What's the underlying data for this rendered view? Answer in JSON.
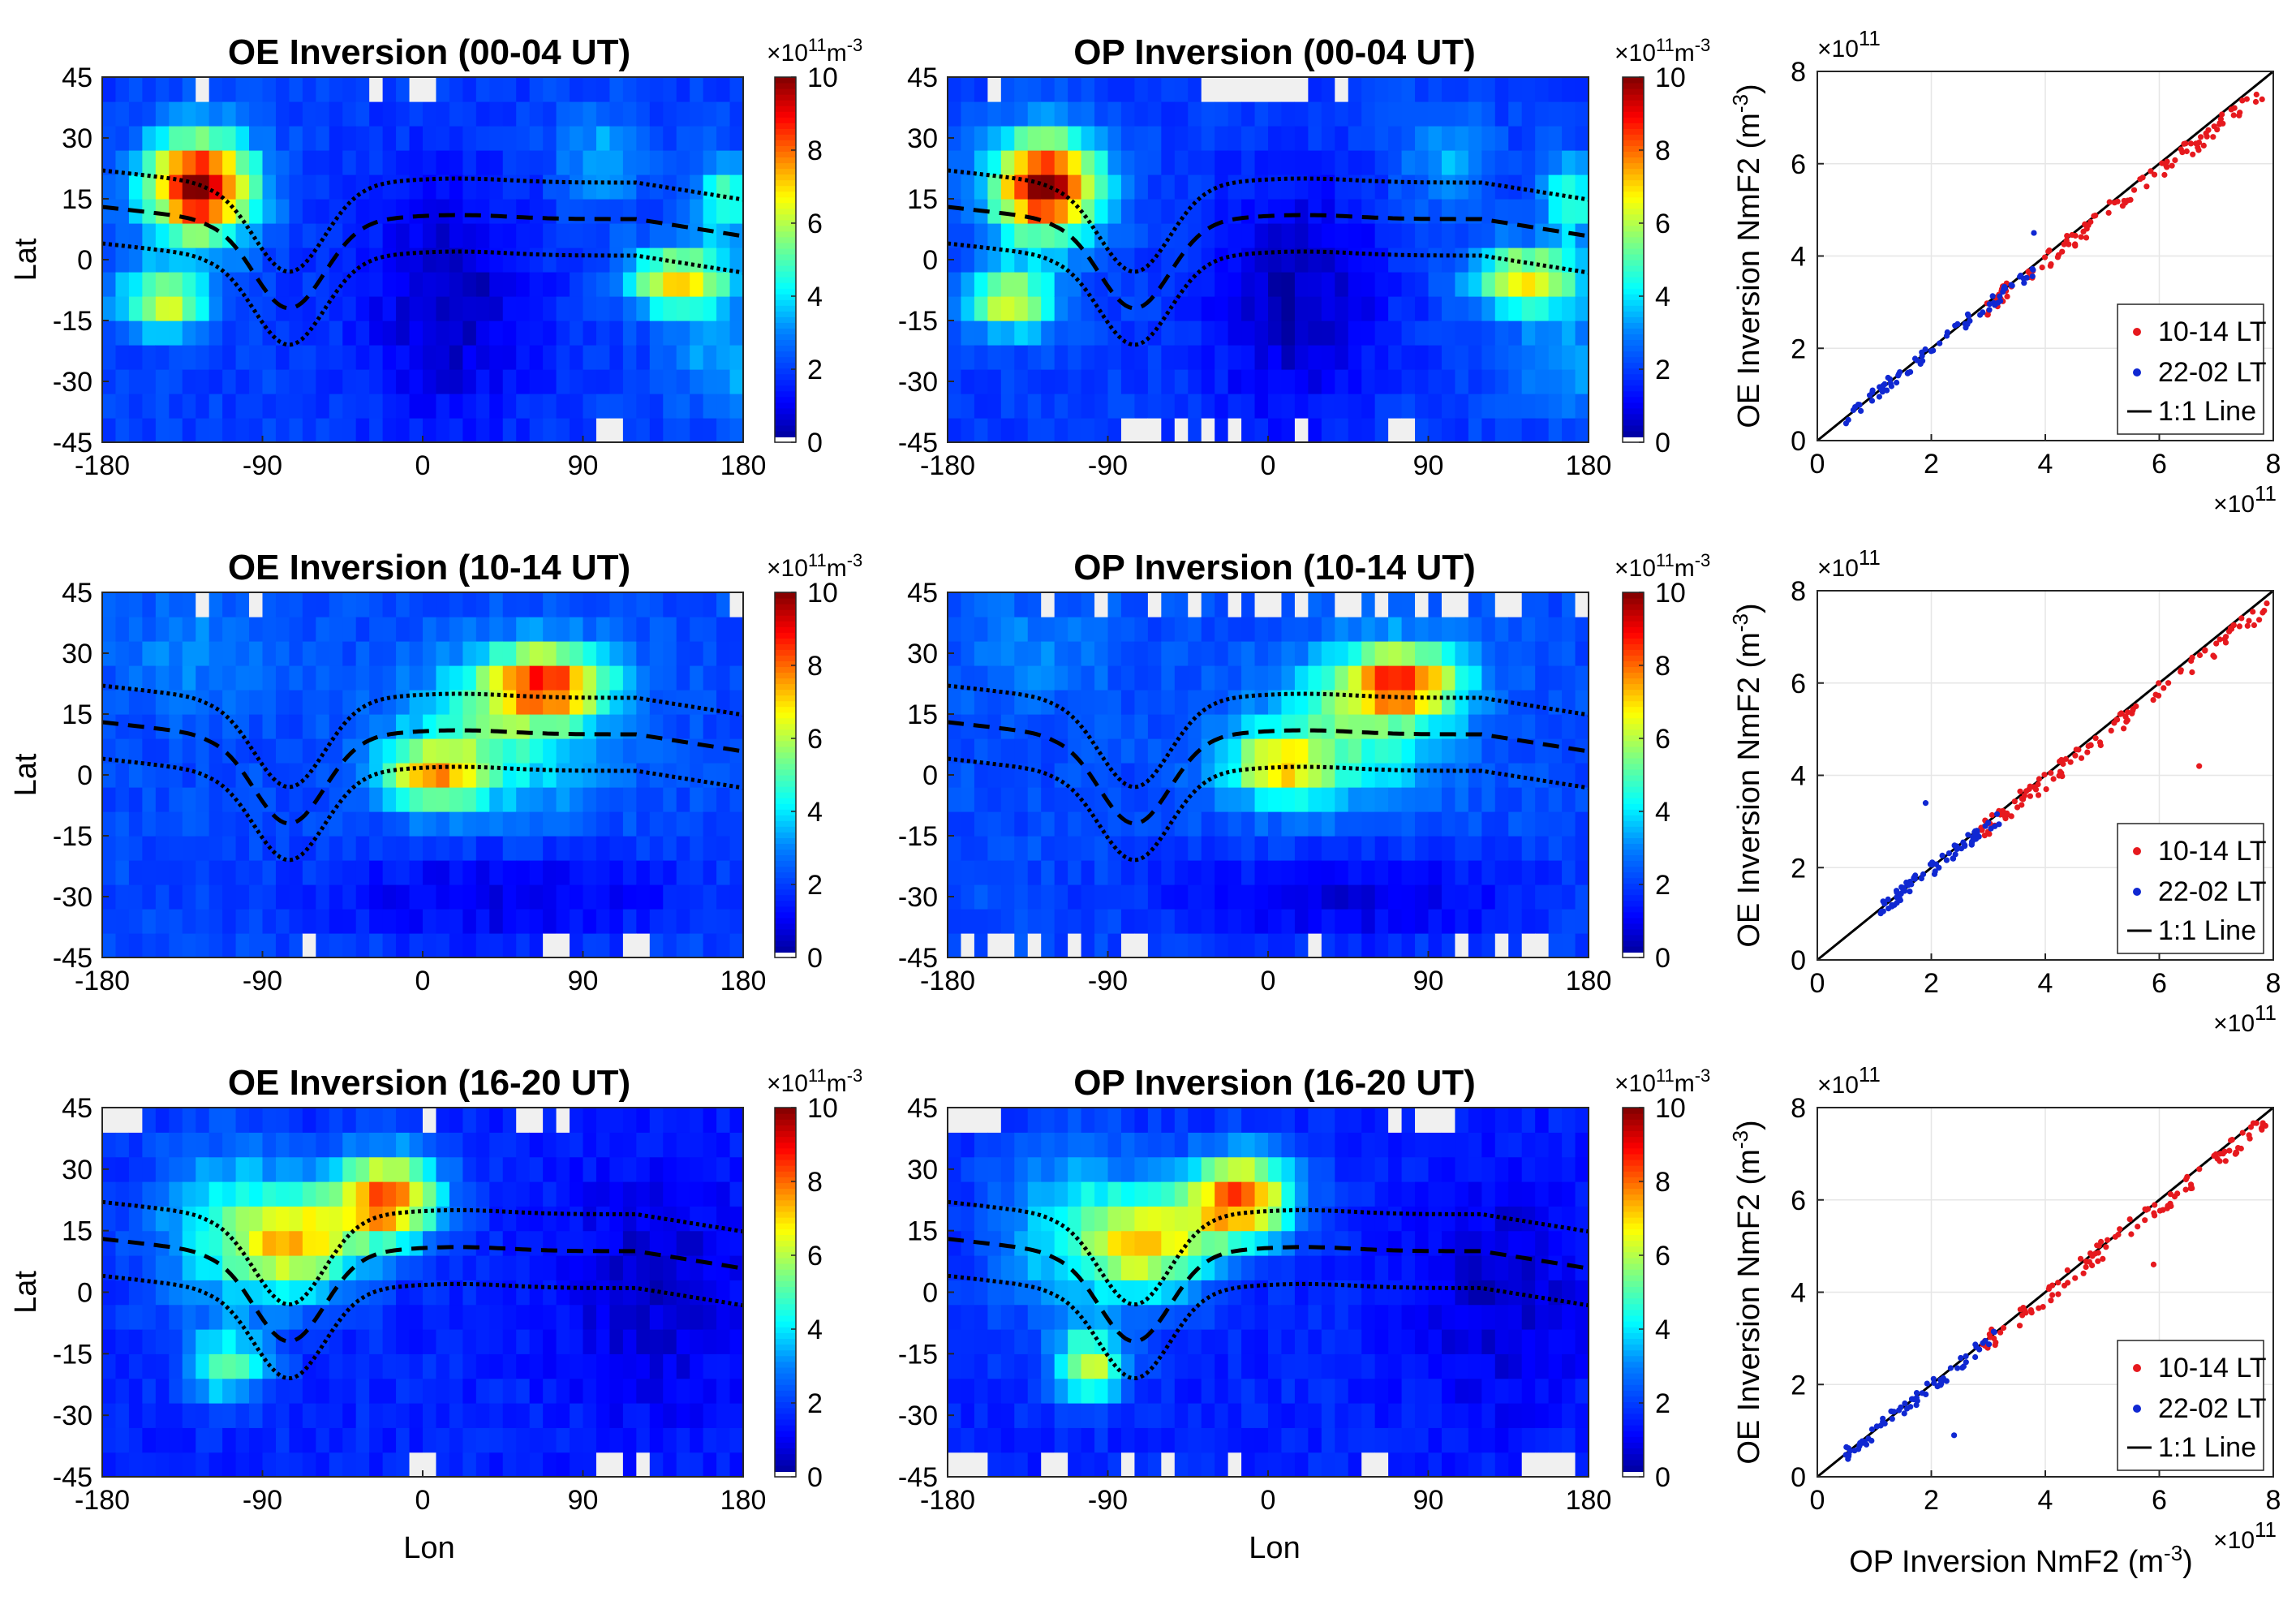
{
  "colors": {
    "missing": "#f0f0f0",
    "red_points": "#e6191e",
    "blue_points": "#1028d2",
    "line": "#000000",
    "grid": "#e6e6e6",
    "colormap": [
      "#00008f",
      "#0000ff",
      "#0080ff",
      "#00ffff",
      "#80ff80",
      "#ffff00",
      "#ff8000",
      "#ff0000",
      "#800000"
    ]
  },
  "chart_data": [
    {
      "type": "heatmap",
      "id": "oe_00_04",
      "title": "OE Inversion (00-04 UT)",
      "xlabel": "",
      "ylabel": "Lat",
      "xlim": [
        -180,
        180
      ],
      "ylim": [
        -45,
        45
      ],
      "xticks": [
        "-180",
        "-90",
        "0",
        "90",
        "180"
      ],
      "yticks": [
        "45",
        "30",
        "15",
        "0",
        "-15",
        "-30",
        "-45"
      ],
      "colorbar": {
        "range": [
          0,
          10
        ],
        "ticks": [
          "10",
          "8",
          "6",
          "4",
          "2",
          "0"
        ],
        "unit_base": "×10",
        "unit_exp": "11",
        "unit_label": "m",
        "unit_label_exp": "-3"
      },
      "field": {
        "base": 2.0,
        "blobs": [
          {
            "lon": -125,
            "lat": 18,
            "sigma_lon": 30,
            "sigma_lat": 13,
            "amp": 8.0
          },
          {
            "lon": -145,
            "lat": -10,
            "sigma_lon": 25,
            "sigma_lat": 8,
            "amp": 4.5
          },
          {
            "lon": 145,
            "lat": -5,
            "sigma_lon": 30,
            "sigma_lat": 8,
            "amp": 5.0
          },
          {
            "lon": 170,
            "lat": 15,
            "sigma_lon": 15,
            "sigma_lat": 10,
            "amp": 3.0
          },
          {
            "lon": 100,
            "lat": 25,
            "sigma_lon": 25,
            "sigma_lat": 12,
            "amp": 1.5
          },
          {
            "lon": 15,
            "lat": -10,
            "sigma_lon": 50,
            "sigma_lat": 30,
            "amp": -1.6
          },
          {
            "lon": 170,
            "lat": -25,
            "sigma_lon": 30,
            "sigma_lat": 12,
            "amp": 1.5
          }
        ],
        "missing_cells": [
          [
            -25,
            42
          ],
          [
            0,
            42
          ],
          [
            -125,
            42
          ],
          [
            105,
            -43
          ]
        ]
      }
    },
    {
      "type": "heatmap",
      "id": "op_00_04",
      "title": "OP Inversion (00-04 UT)",
      "xlabel": "",
      "ylabel": "",
      "xlim": [
        -180,
        180
      ],
      "ylim": [
        -45,
        45
      ],
      "xticks": [
        "-180",
        "-90",
        "0",
        "90",
        "180"
      ],
      "yticks": [
        "45",
        "30",
        "15",
        "0",
        "-15",
        "-30",
        "-45"
      ],
      "colorbar": {
        "range": [
          0,
          10
        ],
        "ticks": [
          "10",
          "8",
          "6",
          "4",
          "2",
          "0"
        ],
        "unit_base": "×10",
        "unit_exp": "11",
        "unit_label": "m",
        "unit_label_exp": "-3"
      },
      "field": {
        "base": 2.0,
        "blobs": [
          {
            "lon": -125,
            "lat": 18,
            "sigma_lon": 30,
            "sigma_lat": 13,
            "amp": 8.0
          },
          {
            "lon": -145,
            "lat": -10,
            "sigma_lon": 25,
            "sigma_lat": 8,
            "amp": 4.5
          },
          {
            "lon": 145,
            "lat": -5,
            "sigma_lon": 30,
            "sigma_lat": 8,
            "amp": 5.0
          },
          {
            "lon": 170,
            "lat": 15,
            "sigma_lon": 15,
            "sigma_lat": 10,
            "amp": 3.0
          },
          {
            "lon": 100,
            "lat": 25,
            "sigma_lon": 25,
            "sigma_lat": 12,
            "amp": 1.5
          },
          {
            "lon": 15,
            "lat": -10,
            "sigma_lon": 50,
            "sigma_lat": 30,
            "amp": -1.6
          },
          {
            "lon": 170,
            "lat": -25,
            "sigma_lon": 30,
            "sigma_lat": 12,
            "amp": 1.5
          }
        ],
        "missing_cells": [
          [
            -75,
            -42
          ],
          [
            -65,
            -42
          ],
          [
            -50,
            -42
          ],
          [
            -35,
            -42
          ],
          [
            -20,
            -42
          ],
          [
            20,
            -42
          ],
          [
            75,
            -42
          ],
          [
            -35,
            42
          ],
          [
            -25,
            42
          ],
          [
            -15,
            42
          ],
          [
            0,
            42
          ],
          [
            15,
            42
          ],
          [
            40,
            42
          ],
          [
            -155,
            42
          ]
        ]
      }
    },
    {
      "type": "scatter",
      "id": "sc_00_04",
      "title": "",
      "xlabel": "",
      "ylabel": "OE Inversion NmF2 (m-3)",
      "ylabel_main": "OE Inversion NmF2 (m",
      "ylabel_exp": "-3",
      "ylabel_close": ")",
      "xlim": [
        0,
        8
      ],
      "ylim": [
        0,
        8
      ],
      "xticks": [
        "0",
        "2",
        "4",
        "6",
        "8"
      ],
      "yticks": [
        "0",
        "2",
        "4",
        "6",
        "8"
      ],
      "axis_multiplier": {
        "base": "×10",
        "exp": "11"
      },
      "legend": [
        "10-14 LT",
        "22-02 LT",
        "1:1 Line"
      ],
      "series": [
        {
          "name": "10-14 LT",
          "color": "red",
          "x_range": [
            2.8,
            7.9
          ],
          "n": 110,
          "slope": 0.97,
          "offset": 0.0,
          "noise": 0.2,
          "seed": 11
        },
        {
          "name": "22-02 LT",
          "color": "blue",
          "x_range": [
            0.5,
            3.9
          ],
          "n": 75,
          "slope": 0.98,
          "offset": 0.0,
          "noise": 0.15,
          "seed": 12
        }
      ],
      "outliers": [
        {
          "x": 3.8,
          "y": 4.5,
          "series": "22-02 LT"
        }
      ]
    },
    {
      "type": "heatmap",
      "id": "oe_10_14",
      "title": "OE Inversion (10-14 UT)",
      "xlabel": "",
      "ylabel": "Lat",
      "xlim": [
        -180,
        180
      ],
      "ylim": [
        -45,
        45
      ],
      "xticks": [
        "-180",
        "-90",
        "0",
        "90",
        "180"
      ],
      "yticks": [
        "45",
        "30",
        "15",
        "0",
        "-15",
        "-30",
        "-45"
      ],
      "colorbar": {
        "range": [
          0,
          10
        ],
        "ticks": [
          "10",
          "8",
          "6",
          "4",
          "2",
          "0"
        ],
        "unit_base": "×10",
        "unit_exp": "11",
        "unit_label": "m",
        "unit_label_exp": "-3"
      },
      "field": {
        "base": 2.2,
        "blobs": [
          {
            "lon": 70,
            "lat": 23,
            "sigma_lon": 35,
            "sigma_lat": 9,
            "amp": 5.5
          },
          {
            "lon": 5,
            "lat": 0,
            "sigma_lon": 28,
            "sigma_lat": 8,
            "amp": 4.5
          },
          {
            "lon": 45,
            "lat": 10,
            "sigma_lon": 55,
            "sigma_lat": 18,
            "amp": 2.5
          },
          {
            "lon": 45,
            "lat": -30,
            "sigma_lon": 110,
            "sigma_lat": 12,
            "amp": -1.4
          },
          {
            "lon": -130,
            "lat": 30,
            "sigma_lon": 40,
            "sigma_lat": 15,
            "amp": 0.8
          }
        ],
        "missing_cells": [
          [
            -125,
            43
          ],
          [
            -95,
            43
          ],
          [
            175,
            42
          ],
          [
            -65,
            -43
          ],
          [
            75,
            -43
          ],
          [
            120,
            -43
          ]
        ]
      }
    },
    {
      "type": "heatmap",
      "id": "op_10_14",
      "title": "OP Inversion (10-14 UT)",
      "xlabel": "",
      "ylabel": "",
      "xlim": [
        -180,
        180
      ],
      "ylim": [
        -45,
        45
      ],
      "xticks": [
        "-180",
        "-90",
        "0",
        "90",
        "180"
      ],
      "yticks": [
        "45",
        "30",
        "15",
        "0",
        "-15",
        "-30",
        "-45"
      ],
      "colorbar": {
        "range": [
          0,
          10
        ],
        "ticks": [
          "10",
          "8",
          "6",
          "4",
          "2",
          "0"
        ],
        "unit_base": "×10",
        "unit_exp": "11",
        "unit_label": "m",
        "unit_label_exp": "-3"
      },
      "field": {
        "base": 2.2,
        "blobs": [
          {
            "lon": 75,
            "lat": 23,
            "sigma_lon": 35,
            "sigma_lat": 9,
            "amp": 5.5
          },
          {
            "lon": 5,
            "lat": 2,
            "sigma_lon": 28,
            "sigma_lat": 8,
            "amp": 4.0
          },
          {
            "lon": 45,
            "lat": 10,
            "sigma_lon": 55,
            "sigma_lat": 18,
            "amp": 2.5
          },
          {
            "lon": 45,
            "lat": -30,
            "sigma_lon": 110,
            "sigma_lat": 12,
            "amp": -1.4
          },
          {
            "lon": -130,
            "lat": 30,
            "sigma_lon": 40,
            "sigma_lat": 15,
            "amp": 0.8
          }
        ],
        "missing_cells": [
          [
            -125,
            42
          ],
          [
            -95,
            42
          ],
          [
            -65,
            42
          ],
          [
            -40,
            42
          ],
          [
            -20,
            42
          ],
          [
            0,
            42
          ],
          [
            20,
            42
          ],
          [
            45,
            42
          ],
          [
            65,
            42
          ],
          [
            85,
            42
          ],
          [
            105,
            42
          ],
          [
            135,
            42
          ],
          [
            175,
            42
          ],
          [
            -170,
            -42
          ],
          [
            -150,
            -42
          ],
          [
            -130,
            -42
          ],
          [
            -110,
            -42
          ],
          [
            -75,
            -42
          ],
          [
            25,
            -42
          ],
          [
            110,
            -42
          ],
          [
            130,
            -42
          ],
          [
            150,
            -42
          ]
        ]
      }
    },
    {
      "type": "scatter",
      "id": "sc_10_14",
      "title": "",
      "xlabel": "",
      "ylabel": "OE Inversion NmF2 (m-3)",
      "ylabel_main": "OE Inversion NmF2 (m",
      "ylabel_exp": "-3",
      "ylabel_close": ")",
      "xlim": [
        0,
        8
      ],
      "ylim": [
        0,
        8
      ],
      "xticks": [
        "0",
        "2",
        "4",
        "6",
        "8"
      ],
      "yticks": [
        "0",
        "2",
        "4",
        "6",
        "8"
      ],
      "axis_multiplier": {
        "base": "×10",
        "exp": "11"
      },
      "legend": [
        "10-14 LT",
        "22-02 LT",
        "1:1 Line"
      ],
      "series": [
        {
          "name": "10-14 LT",
          "color": "red",
          "x_range": [
            2.8,
            7.9
          ],
          "n": 110,
          "slope": 0.97,
          "offset": 0.0,
          "noise": 0.2,
          "seed": 21
        },
        {
          "name": "22-02 LT",
          "color": "blue",
          "x_range": [
            1.1,
            3.2
          ],
          "n": 75,
          "slope": 0.95,
          "offset": 0.05,
          "noise": 0.15,
          "seed": 22
        }
      ],
      "outliers": [
        {
          "x": 6.7,
          "y": 4.2,
          "series": "10-14 LT"
        },
        {
          "x": 1.9,
          "y": 3.4,
          "series": "22-02 LT"
        }
      ]
    },
    {
      "type": "heatmap",
      "id": "oe_16_20",
      "title": "OE Inversion (16-20 UT)",
      "xlabel": "Lon",
      "ylabel": "Lat",
      "xlim": [
        -180,
        180
      ],
      "ylim": [
        -45,
        45
      ],
      "xticks": [
        "-180",
        "-90",
        "0",
        "90",
        "180"
      ],
      "yticks": [
        "45",
        "30",
        "15",
        "0",
        "-15",
        "-30",
        "-45"
      ],
      "colorbar": {
        "range": [
          0,
          10
        ],
        "ticks": [
          "10",
          "8",
          "6",
          "4",
          "2",
          "0"
        ],
        "unit_base": "×10",
        "unit_exp": "11",
        "unit_label": "m",
        "unit_label_exp": "-3"
      },
      "field": {
        "base": 1.6,
        "blobs": [
          {
            "lon": -20,
            "lat": 23,
            "sigma_lon": 30,
            "sigma_lat": 11,
            "amp": 6.5
          },
          {
            "lon": -70,
            "lat": 12,
            "sigma_lon": 35,
            "sigma_lat": 12,
            "amp": 4.5
          },
          {
            "lon": -110,
            "lat": -18,
            "sigma_lon": 22,
            "sigma_lat": 8,
            "amp": 3.5
          },
          {
            "lon": -110,
            "lat": 15,
            "sigma_lon": 45,
            "sigma_lat": 22,
            "amp": 2.5
          },
          {
            "lon": 130,
            "lat": 0,
            "sigma_lon": 55,
            "sigma_lat": 30,
            "amp": -1.0
          }
        ],
        "missing_cells": [
          [
            -175,
            42
          ],
          [
            -165,
            42
          ],
          [
            5,
            42
          ],
          [
            55,
            42
          ],
          [
            65,
            42
          ],
          [
            80,
            42
          ],
          [
            0,
            -43
          ],
          [
            105,
            -43
          ],
          [
            125,
            -41
          ],
          [
            125,
            -43
          ]
        ]
      }
    },
    {
      "type": "heatmap",
      "id": "op_16_20",
      "title": "OP Inversion (16-20 UT)",
      "xlabel": "Lon",
      "ylabel": "",
      "xlim": [
        -180,
        180
      ],
      "ylim": [
        -45,
        45
      ],
      "xticks": [
        "-180",
        "-90",
        "0",
        "90",
        "180"
      ],
      "yticks": [
        "45",
        "30",
        "15",
        "0",
        "-15",
        "-30",
        "-45"
      ],
      "colorbar": {
        "range": [
          0,
          10
        ],
        "ticks": [
          "10",
          "8",
          "6",
          "4",
          "2",
          "0"
        ],
        "unit_base": "×10",
        "unit_exp": "11",
        "unit_label": "m",
        "unit_label_exp": "-3"
      },
      "field": {
        "base": 1.6,
        "blobs": [
          {
            "lon": -15,
            "lat": 23,
            "sigma_lon": 30,
            "sigma_lat": 11,
            "amp": 6.5
          },
          {
            "lon": -65,
            "lat": 12,
            "sigma_lon": 35,
            "sigma_lat": 12,
            "amp": 4.5
          },
          {
            "lon": -100,
            "lat": -18,
            "sigma_lon": 20,
            "sigma_lat": 8,
            "amp": 4.5
          },
          {
            "lon": -110,
            "lat": 15,
            "sigma_lon": 45,
            "sigma_lat": 22,
            "amp": 2.5
          },
          {
            "lon": 130,
            "lat": 0,
            "sigma_lon": 55,
            "sigma_lat": 30,
            "amp": -1.0
          }
        ],
        "missing_cells": [
          [
            -175,
            42
          ],
          [
            -165,
            42
          ],
          [
            -155,
            42
          ],
          [
            70,
            42
          ],
          [
            90,
            42
          ],
          [
            100,
            42
          ],
          [
            -175,
            -42
          ],
          [
            -165,
            -42
          ],
          [
            -125,
            -42
          ],
          [
            -115,
            -42
          ],
          [
            -80,
            -42
          ],
          [
            -55,
            -42
          ],
          [
            -20,
            -42
          ],
          [
            60,
            -42
          ],
          [
            150,
            -42
          ],
          [
            165,
            -42
          ]
        ]
      }
    },
    {
      "type": "scatter",
      "id": "sc_16_20",
      "title": "",
      "xlabel": "OP Inversion NmF2 (m-3)",
      "xlabel_main": "OP Inversion NmF2 (m",
      "xlabel_exp": "-3",
      "xlabel_close": ")",
      "ylabel": "OE Inversion NmF2 (m-3)",
      "ylabel_main": "OE Inversion NmF2 (m",
      "ylabel_exp": "-3",
      "ylabel_close": ")",
      "xlim": [
        0,
        8
      ],
      "ylim": [
        0,
        8
      ],
      "xticks": [
        "0",
        "2",
        "4",
        "6",
        "8"
      ],
      "yticks": [
        "0",
        "2",
        "4",
        "6",
        "8"
      ],
      "axis_multiplier": {
        "base": "×10",
        "exp": "11"
      },
      "legend": [
        "10-14 LT",
        "22-02 LT",
        "1:1 Line"
      ],
      "series": [
        {
          "name": "10-14 LT",
          "color": "red",
          "x_range": [
            2.9,
            7.9
          ],
          "n": 110,
          "slope": 0.98,
          "offset": 0.0,
          "noise": 0.22,
          "seed": 31
        },
        {
          "name": "22-02 LT",
          "color": "blue",
          "x_range": [
            0.5,
            3.2
          ],
          "n": 75,
          "slope": 0.98,
          "offset": 0.0,
          "noise": 0.15,
          "seed": 32
        }
      ],
      "outliers": [
        {
          "x": 5.9,
          "y": 4.6,
          "series": "10-14 LT"
        },
        {
          "x": 2.4,
          "y": 0.9,
          "series": "22-02 LT"
        }
      ]
    }
  ]
}
